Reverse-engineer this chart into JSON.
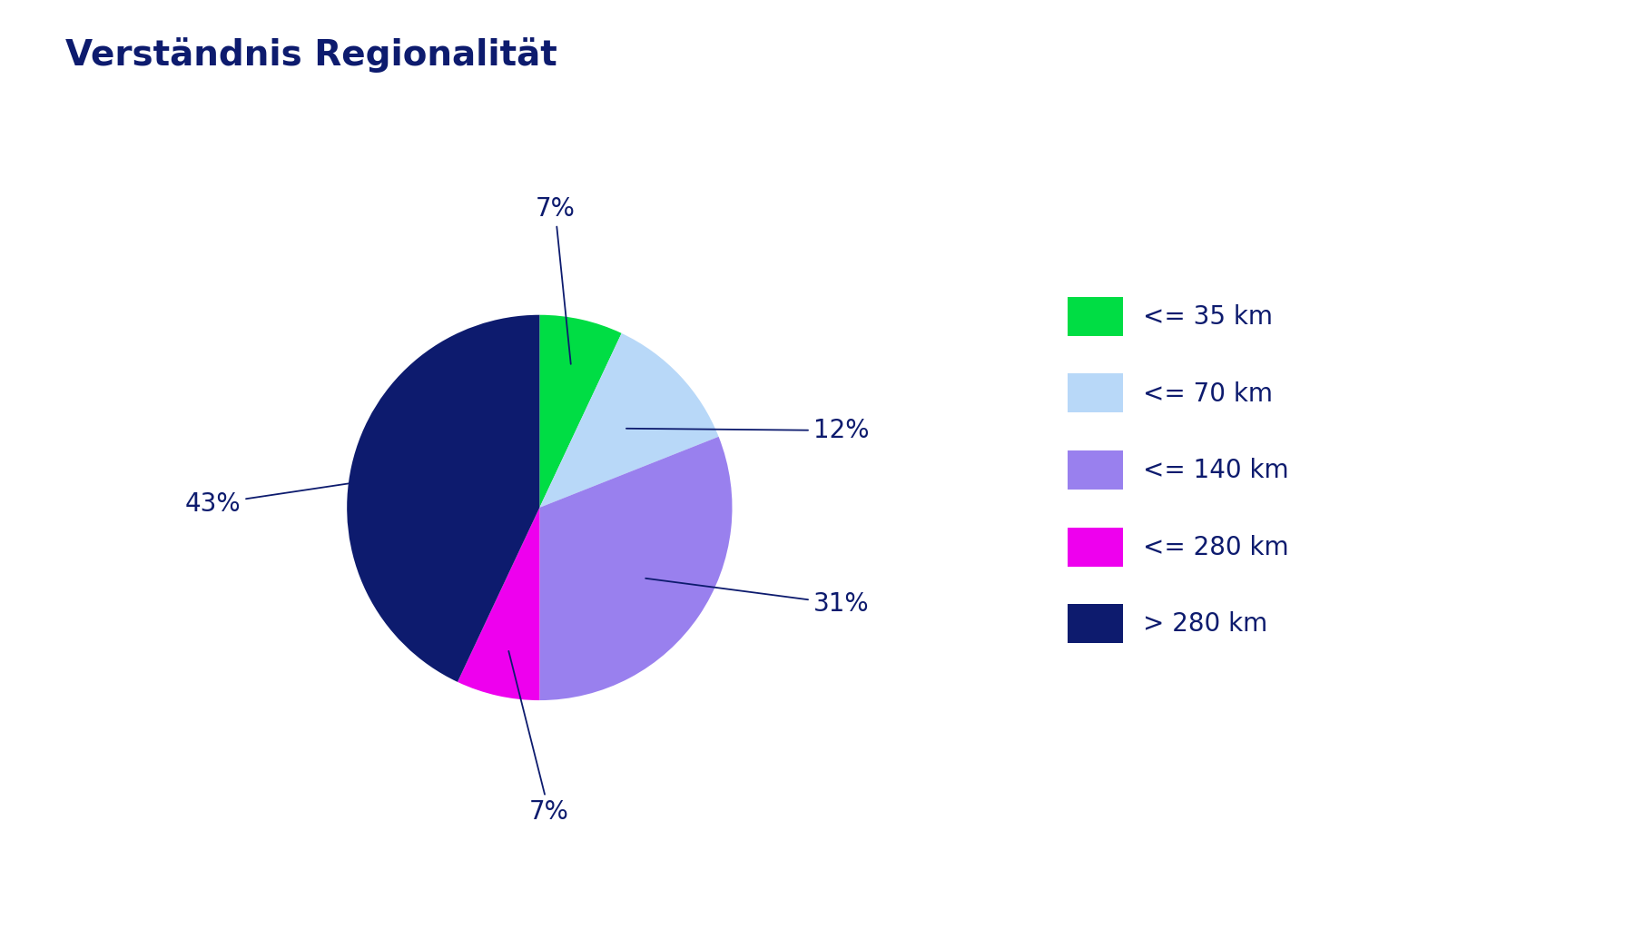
{
  "title": "Verständnis Regionalität",
  "title_color": "#0d1b6e",
  "title_fontsize": 28,
  "background_color": "#ffffff",
  "slices": [
    7,
    12,
    31,
    7,
    43
  ],
  "labels": [
    "≤ 35 km",
    "≤ 70 km",
    "≤ 140 km",
    "≤ 280 km",
    "> 280 km"
  ],
  "legend_labels": [
    "<= 35 km",
    "<= 70 km",
    "<= 140 km",
    "<= 280 km",
    "> 280 km"
  ],
  "colors": [
    "#00dd44",
    "#b8d8f8",
    "#9980ee",
    "#ee00ee",
    "#0d1b6e"
  ],
  "label_texts": [
    "7%",
    "12%",
    "31%",
    "7%",
    "43%"
  ],
  "text_color": "#0d1b6e",
  "label_fontsize": 20,
  "legend_fontsize": 20,
  "startangle": 90
}
